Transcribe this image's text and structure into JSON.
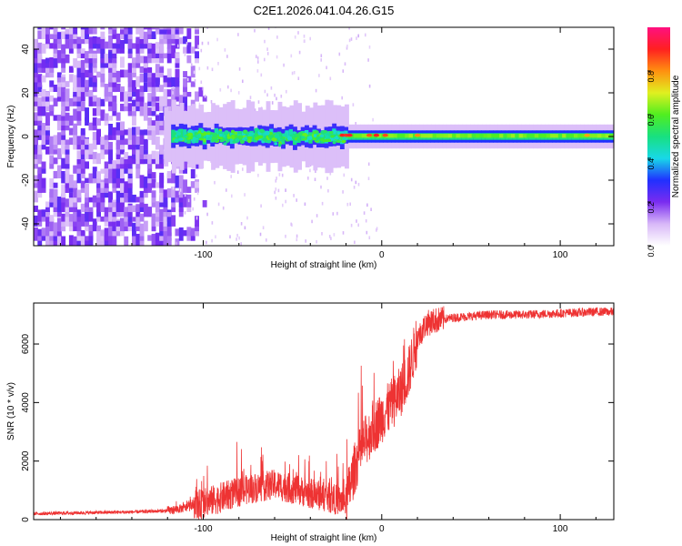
{
  "title": "C2E1.2026.041.04.26.G15",
  "colors": {
    "snr_line": "#ee3333",
    "axis": "#000000",
    "background": "#ffffff"
  },
  "chart_data": [
    {
      "type": "heatmap",
      "name": "spectrogram",
      "xlabel": "Height of straight line (km)",
      "ylabel": "Frequency (Hz)",
      "xlim": [
        -195,
        130
      ],
      "ylim": [
        -50,
        50
      ],
      "xticks": [
        -100,
        0,
        100
      ],
      "xtick_labels": [
        "-100",
        "0",
        "100"
      ],
      "yticks": [
        -40,
        -20,
        0,
        20,
        40
      ],
      "ytick_labels": [
        "-40",
        "-20",
        "0",
        "20",
        "40"
      ],
      "colorbar": {
        "label": "Normalized spectral amplitude",
        "range": [
          0,
          1
        ],
        "ticks": [
          0,
          0.2,
          0.4,
          0.6,
          0.8
        ],
        "tick_labels": [
          "0.0",
          "0.2",
          "0.4",
          "0.6",
          "0.8"
        ]
      },
      "regions": [
        {
          "x": [
            -195,
            -118
          ],
          "description": "broadband noise, amplitude ~0.1-0.25, frequency spread -50 to 50 Hz"
        },
        {
          "x": [
            -118,
            -20
          ],
          "description": "signal band near 0 Hz, width ~5 Hz, amplitude 0.3-0.6"
        },
        {
          "x": [
            -20,
            130
          ],
          "description": "narrow stable band near 0 Hz, amplitude 0.5-0.9"
        }
      ]
    },
    {
      "type": "line",
      "name": "snr",
      "xlabel": "Height of straight line (km)",
      "ylabel": "SNR (10 * v/v)",
      "xlim": [
        -195,
        130
      ],
      "ylim": [
        0,
        7400
      ],
      "xticks": [
        -100,
        0,
        100
      ],
      "xtick_labels": [
        "-100",
        "0",
        "100"
      ],
      "yticks": [
        0,
        2000,
        4000,
        6000
      ],
      "ytick_labels": [
        "0",
        "2000",
        "4000",
        "6000"
      ],
      "series": [
        {
          "name": "SNR",
          "x": [
            -195,
            -180,
            -160,
            -140,
            -120,
            -110,
            -100,
            -90,
            -80,
            -70,
            -60,
            -50,
            -40,
            -30,
            -20,
            -15,
            -10,
            -5,
            0,
            5,
            10,
            15,
            20,
            25,
            30,
            40,
            60,
            80,
            100,
            120,
            130
          ],
          "y": [
            200,
            220,
            240,
            260,
            300,
            400,
            550,
            750,
            950,
            1100,
            1200,
            1050,
            900,
            750,
            600,
            1800,
            2600,
            3100,
            3500,
            3900,
            4300,
            5000,
            6200,
            6700,
            6800,
            6900,
            7000,
            7000,
            7050,
            7100,
            7100
          ]
        }
      ]
    }
  ]
}
